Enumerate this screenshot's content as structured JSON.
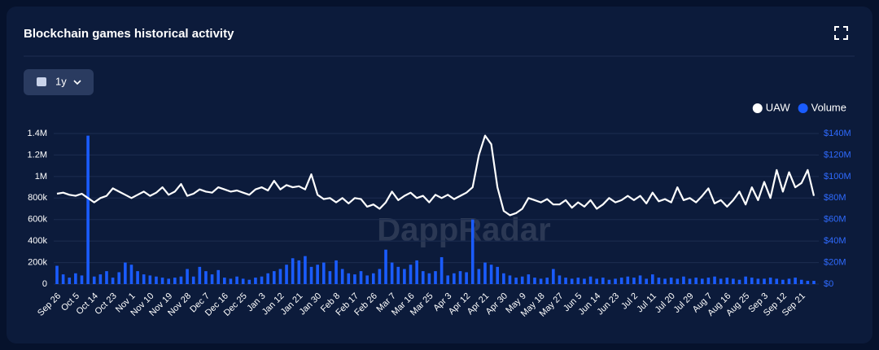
{
  "title": "Blockchain games historical activity",
  "range_button": "1y",
  "chart_data": {
    "type": "combo",
    "watermark": "DappRadar",
    "categories": [
      "Sep 26",
      null,
      null,
      "Oct 5",
      null,
      null,
      "Oct 14",
      null,
      null,
      "Oct 23",
      null,
      null,
      "Nov 1",
      null,
      null,
      "Nov 10",
      null,
      null,
      "Nov 19",
      null,
      null,
      "Nov 28",
      null,
      null,
      "Dec 7",
      null,
      null,
      "Dec 16",
      null,
      null,
      "Dec 25",
      null,
      null,
      "Jan 3",
      null,
      null,
      "Jan 12",
      null,
      null,
      "Jan 21",
      null,
      null,
      "Jan 30",
      null,
      null,
      "Feb 8",
      null,
      null,
      "Feb 17",
      null,
      null,
      "Feb 26",
      null,
      null,
      "Mar 7",
      null,
      null,
      "Mar 16",
      null,
      null,
      "Mar 25",
      null,
      null,
      "Apr 3",
      null,
      null,
      "Apr 12",
      null,
      null,
      "Apr 21",
      null,
      null,
      "Apr 30",
      null,
      null,
      "May 9",
      null,
      null,
      "May 18",
      null,
      null,
      "May 27",
      null,
      null,
      "Jun 5",
      null,
      null,
      "Jun 14",
      null,
      null,
      "Jun 23",
      null,
      null,
      "Jul 2",
      null,
      null,
      "Jul 11",
      null,
      null,
      "Jul 20",
      null,
      null,
      "Jul 29",
      null,
      null,
      "Aug 7",
      null,
      null,
      "Aug 16",
      null,
      null,
      "Aug 25",
      null,
      null,
      "Sep 3",
      null,
      null,
      "Sep 12",
      null,
      null,
      "Sep 21",
      null,
      null
    ],
    "series": [
      {
        "name": "UAW",
        "type": "line",
        "color": "#ffffff",
        "values": [
          840000,
          850000,
          830000,
          820000,
          840000,
          800000,
          760000,
          800000,
          820000,
          890000,
          860000,
          830000,
          800000,
          830000,
          860000,
          820000,
          850000,
          900000,
          830000,
          860000,
          930000,
          820000,
          840000,
          880000,
          860000,
          850000,
          900000,
          880000,
          860000,
          870000,
          850000,
          830000,
          880000,
          900000,
          870000,
          960000,
          880000,
          920000,
          900000,
          910000,
          880000,
          1020000,
          830000,
          790000,
          800000,
          760000,
          800000,
          750000,
          800000,
          790000,
          720000,
          740000,
          700000,
          760000,
          860000,
          780000,
          820000,
          850000,
          800000,
          820000,
          760000,
          830000,
          800000,
          830000,
          790000,
          820000,
          850000,
          900000,
          1200000,
          1380000,
          1300000,
          900000,
          680000,
          640000,
          660000,
          700000,
          800000,
          780000,
          760000,
          790000,
          740000,
          740000,
          780000,
          710000,
          760000,
          720000,
          780000,
          700000,
          740000,
          800000,
          760000,
          780000,
          820000,
          780000,
          820000,
          750000,
          850000,
          770000,
          790000,
          760000,
          900000,
          780000,
          800000,
          760000,
          820000,
          890000,
          750000,
          780000,
          720000,
          780000,
          860000,
          740000,
          900000,
          780000,
          950000,
          800000,
          1060000,
          860000,
          1040000,
          900000,
          940000,
          1060000,
          820000
        ]
      },
      {
        "name": "Volume",
        "type": "bar",
        "axis": "y2",
        "color": "#1a5cff",
        "values": [
          17000000,
          9000000,
          6000000,
          10000000,
          8000000,
          138000000,
          7000000,
          9000000,
          12000000,
          6000000,
          11000000,
          20000000,
          18000000,
          12000000,
          9000000,
          8000000,
          7000000,
          6000000,
          5000000,
          6000000,
          7000000,
          14000000,
          7000000,
          16000000,
          12000000,
          9000000,
          13000000,
          6000000,
          5000000,
          7000000,
          5000000,
          4000000,
          6000000,
          7000000,
          10000000,
          12000000,
          14000000,
          18000000,
          24000000,
          22000000,
          26000000,
          16000000,
          18000000,
          20000000,
          12000000,
          22000000,
          14000000,
          10000000,
          9000000,
          12000000,
          8000000,
          10000000,
          14000000,
          32000000,
          20000000,
          16000000,
          14000000,
          18000000,
          22000000,
          12000000,
          10000000,
          12000000,
          25000000,
          8000000,
          10000000,
          12000000,
          11000000,
          60000000,
          14000000,
          20000000,
          18000000,
          16000000,
          10000000,
          8000000,
          6000000,
          7000000,
          9000000,
          6000000,
          5000000,
          6000000,
          14000000,
          8000000,
          6000000,
          5000000,
          6000000,
          5000000,
          7000000,
          5000000,
          6000000,
          4000000,
          5000000,
          6000000,
          7000000,
          6000000,
          8000000,
          5000000,
          9000000,
          6000000,
          5000000,
          6000000,
          5000000,
          7000000,
          5000000,
          6000000,
          5000000,
          6000000,
          7000000,
          5000000,
          6000000,
          5000000,
          4000000,
          7000000,
          6000000,
          5000000,
          5000000,
          6000000,
          5000000,
          4000000,
          5000000,
          6000000,
          4000000,
          3000000,
          3000000
        ]
      }
    ],
    "ylim": [
      0,
      1400000
    ],
    "yticks": [
      0,
      {
        "value": 200000,
        "label": "200k"
      },
      {
        "value": 400000,
        "label": "400k"
      },
      {
        "value": 600000,
        "label": "600k"
      },
      {
        "value": 800000,
        "label": "800k"
      },
      {
        "value": 1000000,
        "label": "1M"
      },
      {
        "value": 1200000,
        "label": "1.2M"
      },
      {
        "value": 1400000,
        "label": "1.4M"
      }
    ],
    "y2lim": [
      0,
      140000000
    ],
    "y2ticks": [
      {
        "value": 0,
        "label": "$0"
      },
      {
        "value": 20000000,
        "label": "$20M"
      },
      {
        "value": 40000000,
        "label": "$40M"
      },
      {
        "value": 60000000,
        "label": "$60M"
      },
      {
        "value": 80000000,
        "label": "$80M"
      },
      {
        "value": 100000000,
        "label": "$100M"
      },
      {
        "value": 120000000,
        "label": "$120M"
      },
      {
        "value": 140000000,
        "label": "$140M"
      }
    ],
    "grid": true,
    "legend": "top-right"
  }
}
